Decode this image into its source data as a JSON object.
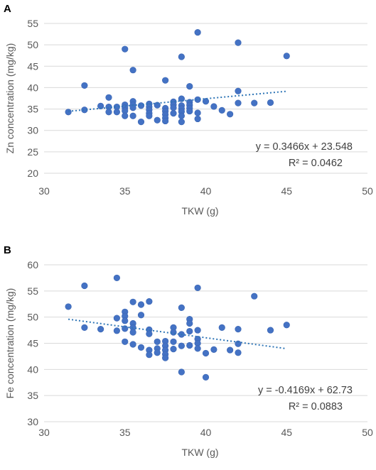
{
  "chart_data": [
    {
      "type": "scatter",
      "panel_label": "A",
      "title": "",
      "xlabel": "TKW (g)",
      "ylabel": "Zn concentration (mg/kg)",
      "xlim": [
        30,
        50
      ],
      "ylim": [
        20,
        55
      ],
      "x_ticks": [
        30,
        35,
        40,
        45,
        50
      ],
      "y_ticks": [
        20,
        25,
        30,
        35,
        40,
        45,
        50,
        55
      ],
      "grid": "horizontal",
      "legend": "none",
      "marker_color": "#4472c4",
      "trendline": {
        "style": "dotted",
        "color": "#2e75b6",
        "slope": 0.3466,
        "intercept": 23.548,
        "x_range": [
          31.5,
          45
        ]
      },
      "equation": "y = 0.3466x + 23.548",
      "r_squared": "R² = 0.0462",
      "points": [
        [
          31.5,
          34.3
        ],
        [
          32.5,
          40.5
        ],
        [
          32.5,
          34.8
        ],
        [
          33.5,
          35.7
        ],
        [
          34,
          37.7
        ],
        [
          34,
          35.5
        ],
        [
          34,
          34.3
        ],
        [
          34.5,
          35.5
        ],
        [
          34.5,
          34.3
        ],
        [
          35,
          49
        ],
        [
          35,
          36
        ],
        [
          35,
          35.3
        ],
        [
          35,
          34.6
        ],
        [
          35,
          33.4
        ],
        [
          35.5,
          44.1
        ],
        [
          35.5,
          36.8
        ],
        [
          35.5,
          36
        ],
        [
          35.5,
          35.3
        ],
        [
          35.5,
          33.4
        ],
        [
          36,
          35.8
        ],
        [
          36,
          32
        ],
        [
          36.5,
          36.2
        ],
        [
          36.5,
          35.5
        ],
        [
          36.5,
          34.8
        ],
        [
          36.5,
          34
        ],
        [
          36.5,
          33.4
        ],
        [
          37,
          35.9
        ],
        [
          37,
          32.4
        ],
        [
          37.5,
          41.7
        ],
        [
          37.5,
          35.2
        ],
        [
          37.5,
          34.5
        ],
        [
          37.5,
          33.7
        ],
        [
          37.5,
          32.9
        ],
        [
          37.5,
          32.2
        ],
        [
          38,
          36.7
        ],
        [
          38,
          36
        ],
        [
          38,
          35.3
        ],
        [
          38,
          34
        ],
        [
          38.5,
          47.2
        ],
        [
          38.5,
          37.4
        ],
        [
          38.5,
          35.8
        ],
        [
          38.5,
          35.1
        ],
        [
          38.5,
          34.4
        ],
        [
          38.5,
          33.4
        ],
        [
          38.5,
          32
        ],
        [
          39,
          40.3
        ],
        [
          39,
          36.6
        ],
        [
          39,
          35.9
        ],
        [
          39,
          35.2
        ],
        [
          39,
          34.5
        ],
        [
          39.5,
          52.9
        ],
        [
          39.5,
          37.2
        ],
        [
          39.5,
          34.1
        ],
        [
          39.5,
          32.7
        ],
        [
          40,
          36.8
        ],
        [
          40.5,
          35.6
        ],
        [
          41,
          34.7
        ],
        [
          41.5,
          33.8
        ],
        [
          42,
          50.5
        ],
        [
          42,
          39.2
        ],
        [
          42,
          36.4
        ],
        [
          43,
          36.4
        ],
        [
          44,
          36.5
        ],
        [
          45,
          47.4
        ]
      ]
    },
    {
      "type": "scatter",
      "panel_label": "B",
      "title": "",
      "xlabel": "TKW (g)",
      "ylabel": "Fe concentration (mg/kg)",
      "xlim": [
        30,
        50
      ],
      "ylim": [
        30,
        60
      ],
      "x_ticks": [
        30,
        35,
        40,
        45,
        50
      ],
      "y_ticks": [
        30,
        35,
        40,
        45,
        50,
        55,
        60
      ],
      "grid": "horizontal",
      "legend": "none",
      "marker_color": "#4472c4",
      "trendline": {
        "style": "dotted",
        "color": "#2e75b6",
        "slope": -0.4169,
        "intercept": 62.73,
        "x_range": [
          31.5,
          45
        ]
      },
      "equation": "y = -0.4169x + 62.73",
      "r_squared": "R² = 0.0883",
      "points": [
        [
          31.5,
          52
        ],
        [
          32.5,
          56
        ],
        [
          32.5,
          48
        ],
        [
          33.5,
          47.7
        ],
        [
          34.5,
          57.5
        ],
        [
          34.5,
          49.8
        ],
        [
          34.5,
          47.4
        ],
        [
          35,
          51
        ],
        [
          35,
          50.2
        ],
        [
          35,
          49.3
        ],
        [
          35,
          47.8
        ],
        [
          35,
          45.3
        ],
        [
          35.5,
          52.9
        ],
        [
          35.5,
          48.8
        ],
        [
          35.5,
          48
        ],
        [
          35.5,
          47.1
        ],
        [
          35.5,
          44.8
        ],
        [
          36,
          52.4
        ],
        [
          36,
          50.4
        ],
        [
          36,
          44.2
        ],
        [
          36.5,
          53
        ],
        [
          36.5,
          47.6
        ],
        [
          36.5,
          46.8
        ],
        [
          36.5,
          43.7
        ],
        [
          36.5,
          42.8
        ],
        [
          37,
          45.3
        ],
        [
          37,
          44
        ],
        [
          37,
          43.2
        ],
        [
          37.5,
          45.4
        ],
        [
          37.5,
          44.5
        ],
        [
          37.5,
          43.7
        ],
        [
          37.5,
          42.9
        ],
        [
          37.5,
          42.2
        ],
        [
          38,
          48
        ],
        [
          38,
          47.1
        ],
        [
          38,
          45.3
        ],
        [
          38,
          43.9
        ],
        [
          38.5,
          51.8
        ],
        [
          38.5,
          46.7
        ],
        [
          38.5,
          44.5
        ],
        [
          38.5,
          39.5
        ],
        [
          39,
          49.6
        ],
        [
          39,
          48.8
        ],
        [
          39,
          47.3
        ],
        [
          39,
          44.6
        ],
        [
          39.5,
          55.6
        ],
        [
          39.5,
          47.5
        ],
        [
          39.5,
          45.8
        ],
        [
          39.5,
          45
        ],
        [
          39.5,
          44
        ],
        [
          40,
          43.1
        ],
        [
          40,
          38.5
        ],
        [
          40.5,
          43.8
        ],
        [
          41,
          48
        ],
        [
          41.5,
          43.7
        ],
        [
          42,
          47.7
        ],
        [
          42,
          44.9
        ],
        [
          42,
          43.2
        ],
        [
          43,
          54
        ],
        [
          44,
          47.5
        ],
        [
          45,
          48.5
        ]
      ]
    }
  ]
}
